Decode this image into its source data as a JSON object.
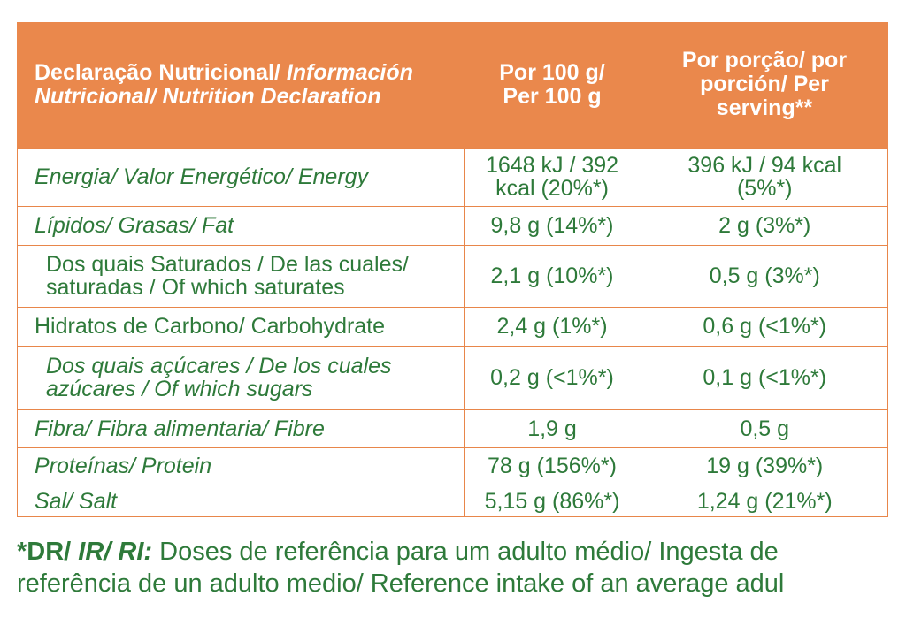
{
  "header": {
    "col1_part1": "Declaração Nutricional/",
    "col1_part2": " Información",
    "col1_part3": "Nutricional/ Nutrition Declaration",
    "col2_line1": "Por 100 g/",
    "col2_line2": "Per 100 g",
    "col3_line1": "Por porção/ por",
    "col3_line2": "porción/ Per",
    "col3_line3": "serving**"
  },
  "rows": [
    {
      "label_line1": "Energia/ Valor Energético/ Energy",
      "label_line2": "",
      "per100_line1": "1648 kJ / 392",
      "per100_line2": "kcal (20%*)",
      "serving_line1": "396 kJ / 94 kcal",
      "serving_line2": "(5%*)"
    },
    {
      "label_line1": "Lípidos/ Grasas/ Fat",
      "label_line2": "",
      "per100_line1": "9,8 g (14%*)",
      "per100_line2": "",
      "serving_line1": "2 g (3%*)",
      "serving_line2": ""
    },
    {
      "label_line1": "Dos quais Saturados / De las cuales/",
      "label_line2": "saturadas / Of which saturates",
      "per100_line1": "2,1 g (10%*)",
      "per100_line2": "",
      "serving_line1": "0,5 g (3%*)",
      "serving_line2": ""
    },
    {
      "label_line1": "Hidratos de Carbono/ Carbohydrate",
      "label_line2": "",
      "per100_line1": "2,4 g (1%*)",
      "per100_line2": "",
      "serving_line1": "0,6 g (<1%*)",
      "serving_line2": ""
    },
    {
      "label_line1": "Dos quais açúcares / De los cuales",
      "label_line2": "azúcares / Of which sugars",
      "per100_line1": "0,2 g (<1%*)",
      "per100_line2": "",
      "serving_line1": "0,1 g (<1%*)",
      "serving_line2": ""
    },
    {
      "label_line1": "Fibra/ Fibra alimentaria/ Fibre",
      "label_line2": "",
      "per100_line1": "1,9 g",
      "per100_line2": "",
      "serving_line1": "0,5 g",
      "serving_line2": ""
    },
    {
      "label_line1": "Proteínas/ Protein",
      "label_line2": "",
      "per100_line1": "78 g (156%*)",
      "per100_line2": "",
      "serving_line1": "19 g (39%*)",
      "serving_line2": ""
    },
    {
      "label_line1": "Sal/ Salt",
      "label_line2": "",
      "per100_line1": "5,15 g (86%*)",
      "per100_line2": "",
      "serving_line1": "1,24 g (21%*)",
      "serving_line2": ""
    }
  ],
  "footnote": {
    "prefix_bold": "*DR/",
    "prefix_bold_italic": " IR/ RI:",
    "text_line1": " Doses de referência para um adulto médio/ Ingesta de",
    "text_line2": "referência de un adulto medio/ Reference intake of an average adul"
  }
}
